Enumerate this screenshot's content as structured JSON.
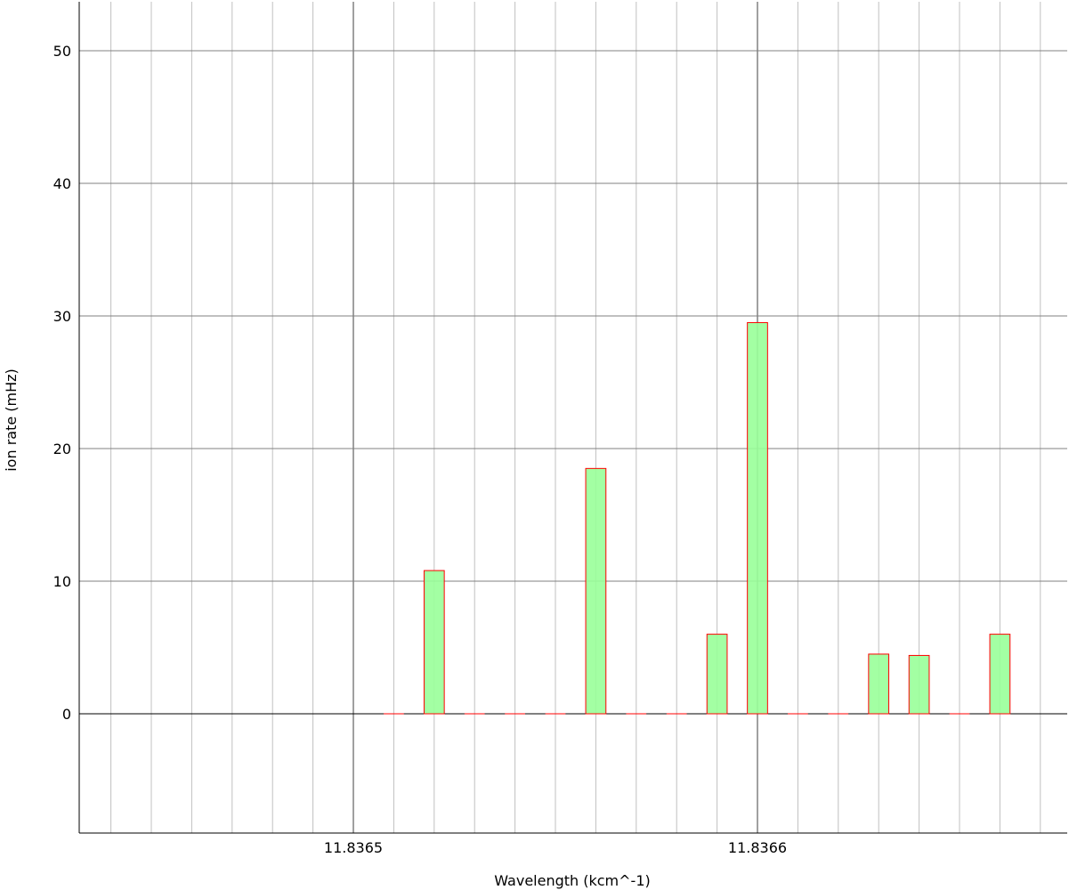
{
  "chart_data": {
    "type": "bar",
    "xlabel": "Wavelength (kcm^-1)",
    "ylabel": "ion rate (mHz)",
    "xlim": [
      11.83642,
      11.83666
    ],
    "ylim": [
      -9,
      53
    ],
    "x_ticks": [
      11.8365,
      11.8366
    ],
    "x_tick_labels": [
      "11.8365",
      "11.8366"
    ],
    "y_ticks": [
      0,
      10,
      20,
      30,
      40,
      50
    ],
    "y_tick_labels": [
      "0",
      "10",
      "20",
      "30",
      "40",
      "50"
    ],
    "x_bin_width": 5e-06,
    "bins": [
      {
        "x": 11.83651,
        "value": 0
      },
      {
        "x": 11.83652,
        "value": 10.8
      },
      {
        "x": 11.83653,
        "value": 0
      },
      {
        "x": 11.83654,
        "value": 0
      },
      {
        "x": 11.83655,
        "value": 0
      },
      {
        "x": 11.83656,
        "value": 0
      },
      {
        "x": 11.83656,
        "value": 18.5
      },
      {
        "x": 11.83657,
        "value": 0
      },
      {
        "x": 11.83658,
        "value": 0
      },
      {
        "x": 11.83659,
        "value": 6.0
      },
      {
        "x": 11.8366,
        "value": 29.5
      },
      {
        "x": 11.83661,
        "value": 0
      },
      {
        "x": 11.83662,
        "value": 0
      },
      {
        "x": 11.83663,
        "value": 4.5
      },
      {
        "x": 11.83664,
        "value": 4.4
      },
      {
        "x": 11.83665,
        "value": 0
      },
      {
        "x": 11.83666,
        "value": 6.0
      }
    ],
    "grid": true,
    "colors": {
      "fill": "#99ff99",
      "edge": "#ff0000",
      "major_grid": "#404040",
      "minor_grid": "#c0c0c0"
    }
  }
}
